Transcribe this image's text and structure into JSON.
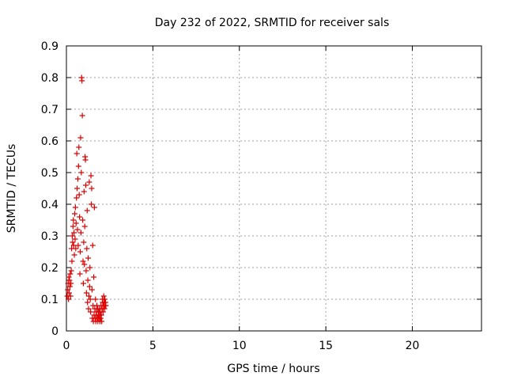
{
  "chart_data": {
    "type": "scatter",
    "title": "Day 232 of 2022, SRMTID for receiver sals",
    "xlabel": "GPS time / hours",
    "ylabel": "SRMTID / TECUs",
    "xlim": [
      0,
      24
    ],
    "ylim": [
      0,
      0.9
    ],
    "xticks": [
      0,
      5,
      10,
      15,
      20
    ],
    "xtick_labels": [
      "0",
      "5",
      "10",
      "15",
      "20"
    ],
    "yticks": [
      0,
      0.1,
      0.2,
      0.3,
      0.4,
      0.5,
      0.6,
      0.7,
      0.8,
      0.9
    ],
    "ytick_labels": [
      "0",
      "0.1",
      "0.2",
      "0.3",
      "0.4",
      "0.5",
      "0.6",
      "0.7",
      "0.8",
      "0.9"
    ],
    "grid": true,
    "marker": "+",
    "marker_color": "#e00000",
    "series": [
      {
        "name": "sals",
        "points": [
          [
            0.05,
            0.11
          ],
          [
            0.08,
            0.13
          ],
          [
            0.1,
            0.15
          ],
          [
            0.12,
            0.1
          ],
          [
            0.14,
            0.17
          ],
          [
            0.16,
            0.12
          ],
          [
            0.18,
            0.16
          ],
          [
            0.2,
            0.14
          ],
          [
            0.22,
            0.18
          ],
          [
            0.24,
            0.11
          ],
          [
            0.26,
            0.15
          ],
          [
            0.28,
            0.19
          ],
          [
            0.3,
            0.26
          ],
          [
            0.32,
            0.22
          ],
          [
            0.34,
            0.3
          ],
          [
            0.36,
            0.28
          ],
          [
            0.38,
            0.33
          ],
          [
            0.4,
            0.35
          ],
          [
            0.42,
            0.27
          ],
          [
            0.44,
            0.31
          ],
          [
            0.46,
            0.24
          ],
          [
            0.48,
            0.37
          ],
          [
            0.5,
            0.29
          ],
          [
            0.52,
            0.39
          ],
          [
            0.54,
            0.26
          ],
          [
            0.56,
            0.34
          ],
          [
            0.58,
            0.42
          ],
          [
            0.6,
            0.56
          ],
          [
            0.62,
            0.45
          ],
          [
            0.64,
            0.32
          ],
          [
            0.66,
            0.48
          ],
          [
            0.68,
            0.27
          ],
          [
            0.7,
            0.52
          ],
          [
            0.72,
            0.58
          ],
          [
            0.74,
            0.43
          ],
          [
            0.76,
            0.36
          ],
          [
            0.78,
            0.18
          ],
          [
            0.8,
            0.25
          ],
          [
            0.82,
            0.61
          ],
          [
            0.84,
            0.31
          ],
          [
            0.86,
            0.5
          ],
          [
            0.88,
            0.8
          ],
          [
            0.9,
            0.79
          ],
          [
            0.92,
            0.68
          ],
          [
            0.94,
            0.35
          ],
          [
            0.96,
            0.22
          ],
          [
            0.98,
            0.15
          ],
          [
            1.0,
            0.28
          ],
          [
            1.02,
            0.44
          ],
          [
            1.04,
            0.21
          ],
          [
            1.06,
            0.33
          ],
          [
            1.08,
            0.55
          ],
          [
            1.1,
            0.54
          ],
          [
            1.12,
            0.46
          ],
          [
            1.14,
            0.19
          ],
          [
            1.16,
            0.12
          ],
          [
            1.18,
            0.26
          ],
          [
            1.2,
            0.38
          ],
          [
            1.22,
            0.09
          ],
          [
            1.24,
            0.16
          ],
          [
            1.26,
            0.23
          ],
          [
            1.28,
            0.07
          ],
          [
            1.3,
            0.11
          ],
          [
            1.32,
            0.47
          ],
          [
            1.34,
            0.14
          ],
          [
            1.36,
            0.2
          ],
          [
            1.38,
            0.1
          ],
          [
            1.4,
            0.06
          ],
          [
            1.42,
            0.49
          ],
          [
            1.44,
            0.4
          ],
          [
            1.46,
            0.45
          ],
          [
            1.48,
            0.13
          ],
          [
            1.5,
            0.04
          ],
          [
            1.52,
            0.27
          ],
          [
            1.54,
            0.08
          ],
          [
            1.56,
            0.03
          ],
          [
            1.58,
            0.17
          ],
          [
            1.6,
            0.05
          ],
          [
            1.62,
            0.39
          ],
          [
            1.64,
            0.07
          ],
          [
            1.66,
            0.04
          ],
          [
            1.68,
            0.1
          ],
          [
            1.7,
            0.03
          ],
          [
            1.72,
            0.06
          ],
          [
            1.74,
            0.05
          ],
          [
            1.76,
            0.08
          ],
          [
            1.78,
            0.04
          ],
          [
            1.8,
            0.07
          ],
          [
            1.82,
            0.03
          ],
          [
            1.84,
            0.05
          ],
          [
            1.86,
            0.06
          ],
          [
            1.88,
            0.04
          ],
          [
            1.9,
            0.07
          ],
          [
            1.92,
            0.05
          ],
          [
            1.94,
            0.03
          ],
          [
            1.96,
            0.06
          ],
          [
            1.98,
            0.04
          ],
          [
            2.0,
            0.08
          ],
          [
            2.02,
            0.05
          ],
          [
            2.04,
            0.03
          ],
          [
            2.06,
            0.07
          ],
          [
            2.08,
            0.1
          ],
          [
            2.1,
            0.09
          ],
          [
            2.12,
            0.06
          ],
          [
            2.14,
            0.08
          ],
          [
            2.16,
            0.11
          ],
          [
            2.18,
            0.09
          ],
          [
            2.2,
            0.07
          ],
          [
            2.22,
            0.1
          ],
          [
            2.24,
            0.08
          ],
          [
            2.26,
            0.09
          ],
          [
            2.28,
            0.08
          ]
        ]
      }
    ]
  }
}
